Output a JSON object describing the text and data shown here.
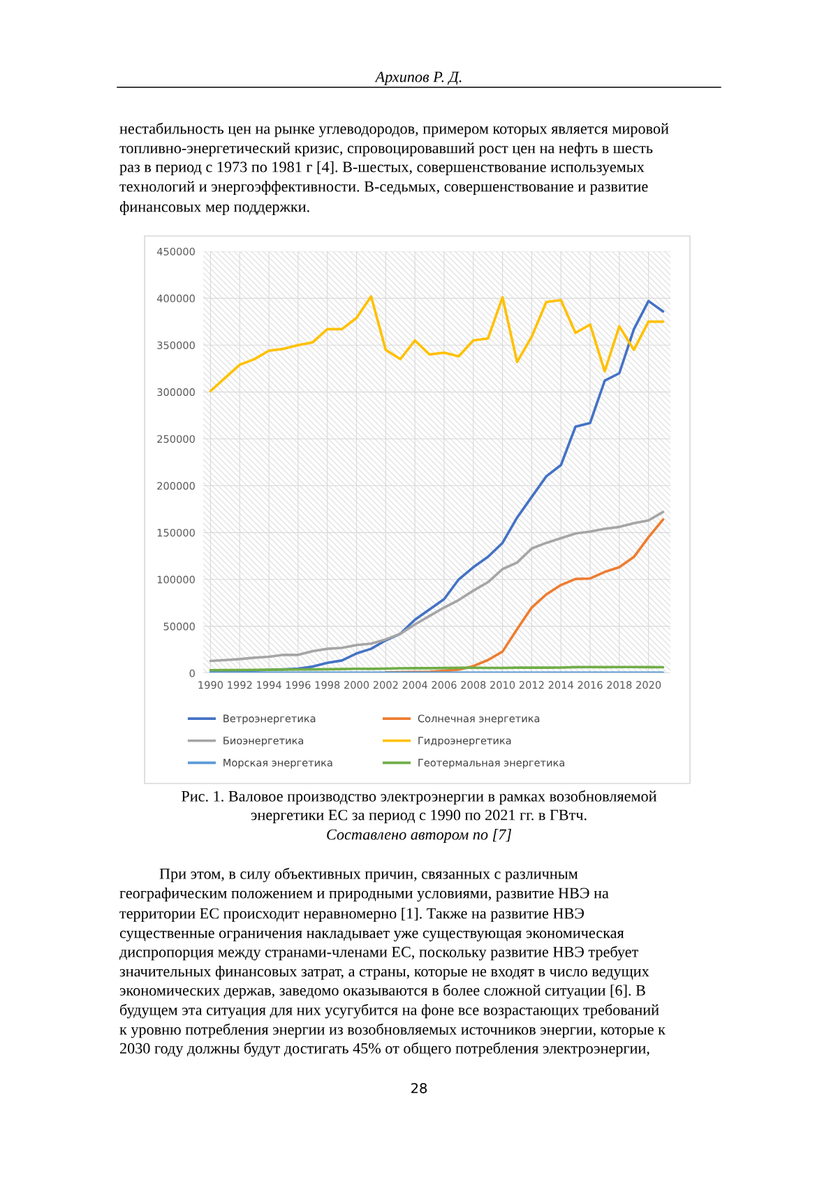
{
  "chart_data": {
    "type": "line",
    "x": [
      1990,
      1991,
      1992,
      1993,
      1994,
      1995,
      1996,
      1997,
      1998,
      1999,
      2000,
      2001,
      2002,
      2003,
      2004,
      2005,
      2006,
      2007,
      2008,
      2009,
      2010,
      2011,
      2012,
      2013,
      2014,
      2015,
      2016,
      2017,
      2018,
      2019,
      2020,
      2021
    ],
    "series": [
      {
        "name": "Ветроэнергетика",
        "color": "#4472c4",
        "values": [
          800,
          1400,
          2000,
          2800,
          3500,
          4000,
          4800,
          7000,
          11000,
          13500,
          21000,
          26000,
          35000,
          42000,
          57000,
          68000,
          79000,
          100000,
          113000,
          124000,
          139000,
          166000,
          188000,
          210000,
          222000,
          263000,
          267000,
          312000,
          320000,
          367000,
          397000,
          386000
        ]
      },
      {
        "name": "Солнечная энергетика",
        "color": "#ed7d31",
        "values": [
          null,
          null,
          null,
          null,
          null,
          null,
          null,
          null,
          null,
          null,
          null,
          null,
          800,
          1000,
          1200,
          1500,
          2500,
          3800,
          7500,
          14000,
          23000,
          47000,
          70000,
          84000,
          94000,
          100500,
          101000,
          108000,
          113000,
          124000,
          145000,
          164000
        ]
      },
      {
        "name": "Биоэнергетика",
        "color": "#a5a5a5",
        "values": [
          13000,
          14000,
          15000,
          16500,
          17500,
          19500,
          19500,
          23500,
          26000,
          27000,
          30000,
          31500,
          36000,
          42000,
          52000,
          61000,
          70000,
          78000,
          88000,
          97000,
          111000,
          118000,
          133000,
          139000,
          144000,
          149000,
          151000,
          154000,
          156000,
          160000,
          163000,
          172000
        ]
      },
      {
        "name": "Гидроэнергетика",
        "color": "#ffc000",
        "values": [
          301000,
          315000,
          329000,
          335000,
          344000,
          346000,
          350000,
          353000,
          367000,
          367000,
          379000,
          402000,
          345000,
          335000,
          355000,
          340000,
          342000,
          338000,
          355000,
          357000,
          401000,
          332000,
          359000,
          396000,
          398000,
          363000,
          372000,
          322000,
          370000,
          345000,
          375000,
          375000
        ]
      },
      {
        "name": "Морская энергетика",
        "color": "#5b9bd5",
        "values": [
          500,
          500,
          500,
          500,
          500,
          500,
          500,
          500,
          500,
          500,
          500,
          500,
          500,
          500,
          500,
          500,
          500,
          500,
          500,
          500,
          500,
          500,
          500,
          500,
          500,
          500,
          500,
          500,
          500,
          500,
          500,
          500
        ]
      },
      {
        "name": "Геотермальная энергетика",
        "color": "#70ad47",
        "values": [
          3200,
          3300,
          3400,
          3500,
          3600,
          3800,
          3900,
          4000,
          4200,
          4400,
          4700,
          4600,
          4800,
          5200,
          5300,
          5300,
          5500,
          5700,
          5800,
          5600,
          5600,
          5900,
          5900,
          5900,
          6000,
          6400,
          6500,
          6400,
          6500,
          6500,
          6400,
          6300
        ]
      }
    ],
    "xlim": [
      1989.5,
      2021.5
    ],
    "xticks": [
      1990,
      1992,
      1994,
      1996,
      1998,
      2000,
      2002,
      2004,
      2006,
      2008,
      2010,
      2012,
      2014,
      2016,
      2018,
      2020
    ],
    "ylim": [
      0,
      450000
    ],
    "yticks": [
      0,
      50000,
      100000,
      150000,
      200000,
      250000,
      300000,
      350000,
      400000,
      450000
    ],
    "grid": true,
    "legend": "bottom",
    "marker": "none",
    "line_style": "solid",
    "annotations": [
      "Архипов Р. Д.",
      "нестабильность цен на рынке углеводородов, примером которых является мировой",
      "топливно-энергетический кризис, спровоцировавший рост цен на нефть в шесть",
      "раз в период с 1973 по 1981 г [4]. В-шестых, совершенствование используемых",
      "технологий и энергоэффективности. В-седьмых, совершенствование и развитие",
      "финансовых мер поддержки.",
      "Рис. 1. Валовое производство электроэнергии в рамках возобновляемой",
      "энергетики ЕС за период с 1990 по 2021 гг. в ГВтч.",
      "Составлено автором по [7]",
      "При этом, в силу объективных причин, связанных с различным",
      "географическим положением и природными условиями, развитие НВЭ на",
      "территории ЕС происходит неравномерно [1]. Также на развитие НВЭ",
      "существенные ограничения накладывает уже существующая экономическая",
      "диспропорция между странами-членами ЕС, поскольку развитие НВЭ требует",
      "значительных финансовых затрат, а страны, которые не входят в число ведущих",
      "экономических держав, заведомо оказываются в более сложной ситуации [6]. В",
      "будущем эта ситуация для них усугубится на фоне все возрастающих требований",
      "к уровню потребления энергии из возобновляемых источников энергии, которые к",
      "2030 году должны будут достигать 45% от общего потребления электроэнергии,",
      "28"
    ]
  }
}
